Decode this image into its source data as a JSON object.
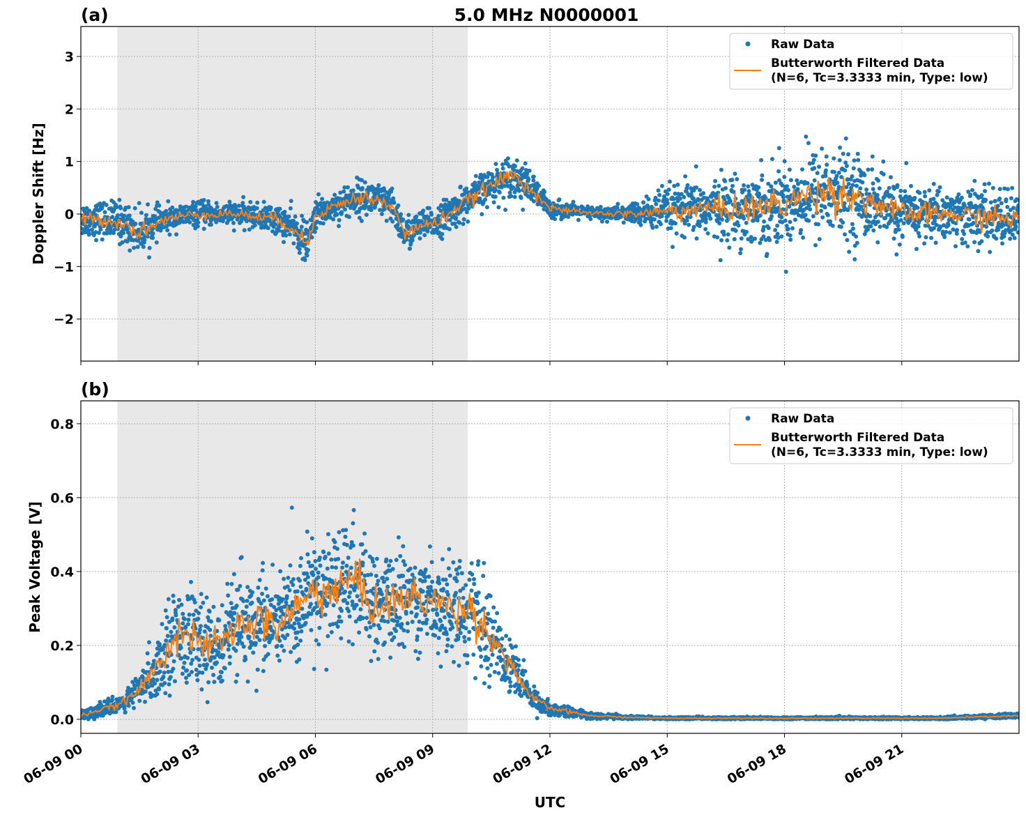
{
  "title": "5.0 MHz N0000001",
  "chart_data": [
    {
      "type": "scatter",
      "panel_label": "(a)",
      "ylabel": "Doppler Shift [Hz]",
      "xlabel": "",
      "xlim_hours_utc": [
        0,
        24
      ],
      "ylim": [
        -2.8,
        3.57
      ],
      "yticks": [
        {
          "v": -2,
          "label": "−2"
        },
        {
          "v": -1,
          "label": "−1"
        },
        {
          "v": 0,
          "label": "0"
        },
        {
          "v": 1,
          "label": "1"
        },
        {
          "v": 2,
          "label": "2"
        },
        {
          "v": 3,
          "label": "3"
        }
      ],
      "grid": true,
      "legend_placement": "top-right",
      "shaded_region_utc": [
        "00:56",
        "09:54"
      ],
      "series": [
        {
          "name": "Raw Data",
          "kind": "scatter",
          "color": "#1f77b4"
        },
        {
          "name": "Butterworth Filtered Data\n(N=6, Tc=3.3333 min, Type: low)",
          "legend_lines": [
            "Butterworth Filtered Data",
            "(N=6, Tc=3.3333 min, Type: low)"
          ],
          "kind": "line",
          "color": "#ff7f0e"
        }
      ],
      "approx_trend": {
        "hour_utc": [
          0,
          0.5,
          1,
          1.5,
          2,
          2.5,
          3,
          3.5,
          4,
          4.5,
          5,
          5.5,
          5.8,
          6,
          6.5,
          7,
          7.5,
          8,
          8.3,
          8.7,
          9,
          9.5,
          10,
          10.5,
          11,
          11.5,
          12,
          13,
          14,
          15,
          16,
          17,
          18,
          19,
          20,
          21,
          22,
          23,
          24
        ],
        "filtered": [
          -0.1,
          -0.1,
          -0.15,
          -0.35,
          -0.15,
          -0.05,
          0,
          0,
          0,
          -0.05,
          -0.1,
          -0.3,
          -0.6,
          0,
          0.15,
          0.3,
          0.3,
          0.1,
          -0.4,
          -0.2,
          -0.2,
          0.05,
          0.3,
          0.55,
          0.75,
          0.5,
          0.1,
          0.02,
          0,
          0.05,
          0.1,
          0.1,
          0.2,
          0.45,
          0.3,
          0,
          0,
          -0.05,
          -0.1
        ],
        "raw_spread": [
          0.3,
          0.3,
          0.35,
          0.35,
          0.25,
          0.2,
          0.2,
          0.2,
          0.2,
          0.2,
          0.25,
          0.3,
          0.35,
          0.25,
          0.25,
          0.3,
          0.3,
          0.3,
          0.3,
          0.25,
          0.25,
          0.3,
          0.3,
          0.3,
          0.35,
          0.3,
          0.15,
          0.1,
          0.15,
          0.4,
          0.5,
          0.6,
          0.7,
          0.8,
          0.7,
          0.5,
          0.45,
          0.5,
          0.45
        ]
      }
    },
    {
      "type": "scatter",
      "panel_label": "(b)",
      "ylabel": "Peak Voltage [V]",
      "xlabel": "UTC",
      "xlim_hours_utc": [
        0,
        24
      ],
      "ylim": [
        -0.038,
        0.862
      ],
      "yticks": [
        {
          "v": 0,
          "label": "0.0"
        },
        {
          "v": 0.2,
          "label": "0.2"
        },
        {
          "v": 0.4,
          "label": "0.4"
        },
        {
          "v": 0.6,
          "label": "0.6"
        },
        {
          "v": 0.8,
          "label": "0.8"
        }
      ],
      "grid": true,
      "legend_placement": "top-right",
      "shaded_region_utc": [
        "00:56",
        "09:54"
      ],
      "series": [
        {
          "name": "Raw Data",
          "kind": "scatter",
          "color": "#1f77b4"
        },
        {
          "name": "Butterworth Filtered Data\n(N=6, Tc=3.3333 min, Type: low)",
          "legend_lines": [
            "Butterworth Filtered Data",
            "(N=6, Tc=3.3333 min, Type: low)"
          ],
          "kind": "line",
          "color": "#ff7f0e"
        }
      ],
      "approx_trend": {
        "hour_utc": [
          0,
          1,
          1.5,
          2,
          2.5,
          3,
          3.5,
          4,
          4.5,
          5,
          5.5,
          6,
          6.5,
          7,
          7.5,
          8,
          8.5,
          9,
          9.5,
          10,
          10.5,
          11,
          11.5,
          12,
          13,
          14,
          15,
          22,
          24
        ],
        "filtered": [
          0.01,
          0.04,
          0.08,
          0.15,
          0.25,
          0.2,
          0.2,
          0.25,
          0.27,
          0.25,
          0.3,
          0.35,
          0.35,
          0.38,
          0.3,
          0.32,
          0.33,
          0.32,
          0.3,
          0.3,
          0.22,
          0.15,
          0.06,
          0.03,
          0.01,
          0.005,
          0.003,
          0.003,
          0.01
        ],
        "raw_spread": [
          0.01,
          0.02,
          0.04,
          0.08,
          0.12,
          0.1,
          0.1,
          0.12,
          0.12,
          0.12,
          0.12,
          0.14,
          0.14,
          0.14,
          0.12,
          0.12,
          0.12,
          0.12,
          0.12,
          0.12,
          0.1,
          0.08,
          0.03,
          0.015,
          0.008,
          0.004,
          0.003,
          0.003,
          0.006
        ]
      }
    }
  ],
  "xticks": [
    "06-09 00",
    "06-09 03",
    "06-09 06",
    "06-09 09",
    "06-09 12",
    "06-09 15",
    "06-09 18",
    "06-09 21"
  ],
  "xtick_hours": [
    0,
    3,
    6,
    9,
    12,
    15,
    18,
    21
  ]
}
